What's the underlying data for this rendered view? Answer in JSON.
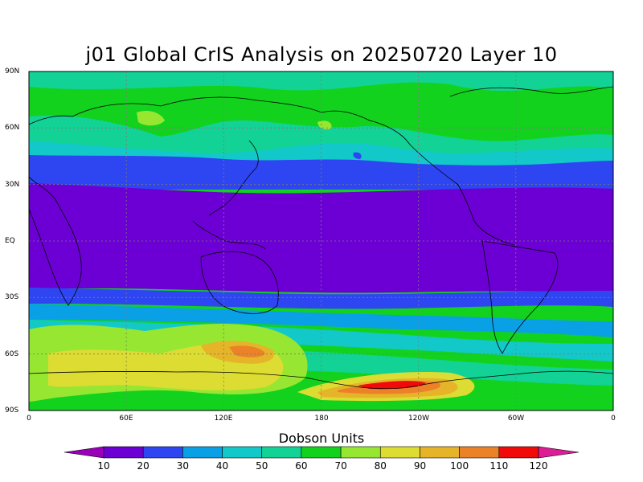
{
  "title": "j01 Global CrIS Analysis on 20250720 Layer 10",
  "lat_labels": [
    "90N",
    "60N",
    "30N",
    "EQ",
    "30S",
    "60S",
    "90S"
  ],
  "lon_labels": [
    "0",
    "60E",
    "120E",
    "180",
    "120W",
    "60W",
    "0"
  ],
  "colorbar": {
    "title": "Dobson Units",
    "ticks": [
      "10",
      "20",
      "30",
      "40",
      "50",
      "60",
      "70",
      "80",
      "90",
      "100",
      "110",
      "120"
    ],
    "colors": [
      "#9a00b8",
      "#6c00d4",
      "#2e46f2",
      "#0aa0e6",
      "#12c8c8",
      "#12d296",
      "#12d21e",
      "#96e632",
      "#dcdc32",
      "#e6b428",
      "#eb8228",
      "#f00a0a",
      "#dc1e96"
    ]
  }
}
